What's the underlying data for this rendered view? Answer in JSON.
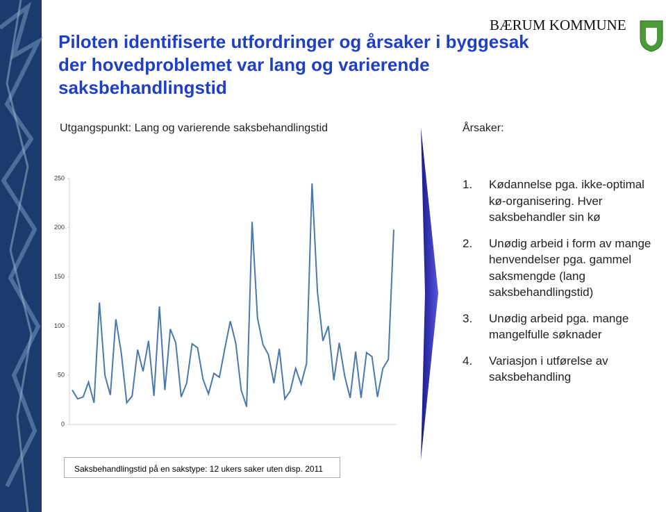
{
  "header": {
    "title": "Piloten identifiserte utfordringer og årsaker i byggesak der hovedproblemet var lang og varierende saksbehandlingstid",
    "logo": "BÆRUM KOMMUNE"
  },
  "left_heading": "Utgangspunkt: Lang og varierende saksbehandlingstid",
  "chart_data": {
    "type": "line",
    "color": "#4a78ab",
    "values": [
      35,
      26,
      28,
      43,
      22,
      124,
      50,
      30,
      107,
      73,
      22,
      29,
      76,
      54,
      85,
      29,
      120,
      35,
      97,
      83,
      28,
      42,
      82,
      78,
      46,
      31,
      52,
      48,
      77,
      105,
      83,
      35,
      18,
      206,
      108,
      81,
      71,
      42,
      77,
      26,
      34,
      57,
      41,
      62,
      245,
      135,
      85,
      100,
      45,
      83,
      49,
      27,
      74,
      27,
      73,
      69,
      28,
      57,
      66,
      198
    ],
    "ylim": [
      0,
      250
    ],
    "yticks": [
      0,
      50,
      100,
      150,
      200,
      250
    ],
    "caption": "Saksbehandlingstid på en sakstype: 12 ukers saker uten disp. 2011"
  },
  "causes": {
    "heading": "Årsaker:",
    "items": [
      {
        "number": "1.",
        "text": "Kødannelse pga. ikke-optimal kø-organisering. Hver saksbehandler sin kø"
      },
      {
        "number": "2.",
        "text": "Unødig arbeid i form av mange henvendelser pga. gammel saksmengde (lang saksbehandlingstid)"
      },
      {
        "number": "3.",
        "text": "Unødig arbeid pga. mange mangelfulle søknader"
      },
      {
        "number": "4.",
        "text": "Variasjon i utførelse av saksbehandling"
      }
    ]
  }
}
